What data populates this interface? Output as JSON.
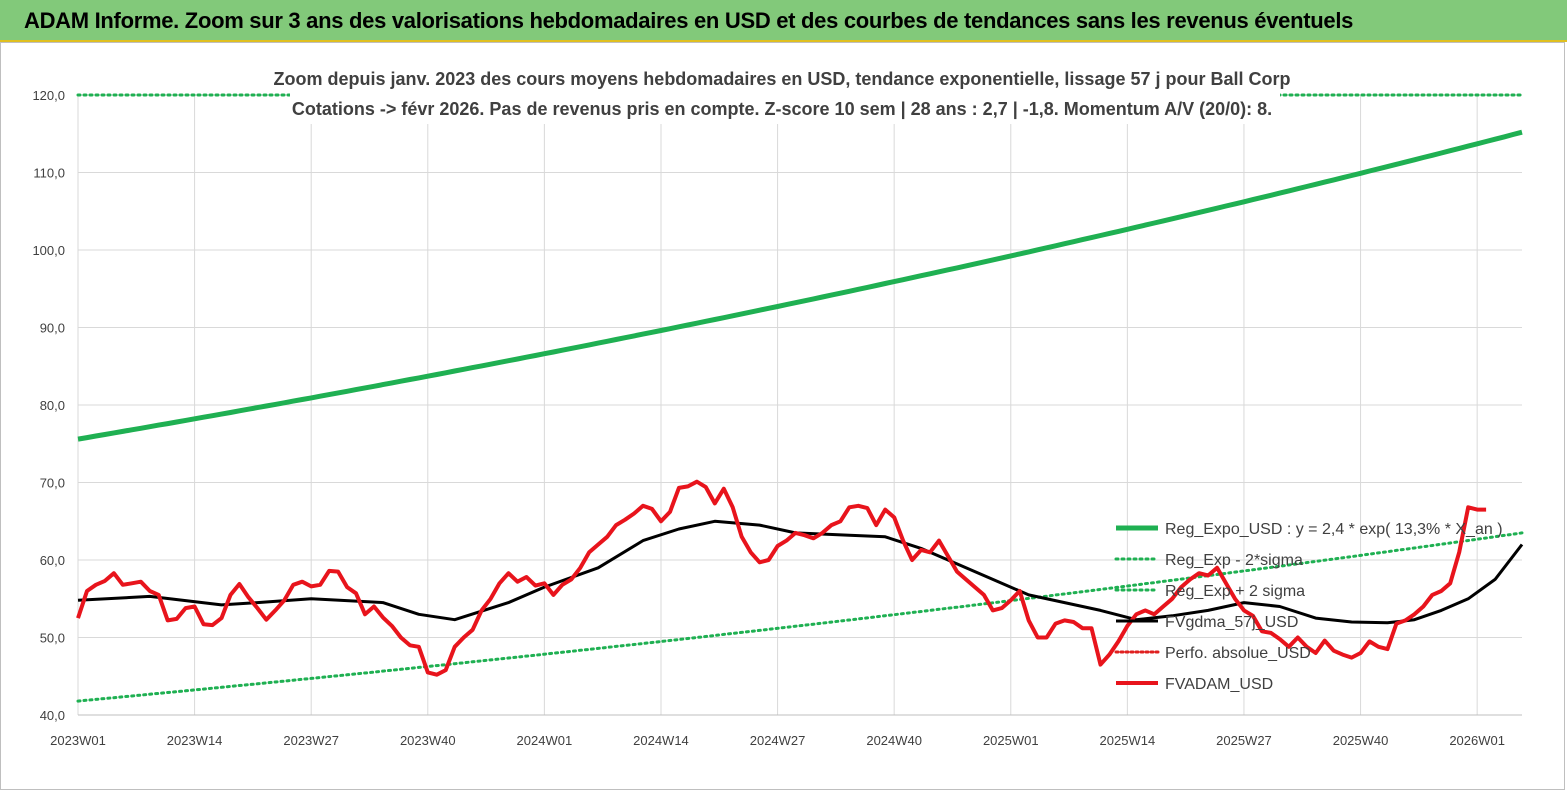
{
  "header": {
    "title": "ADAM Informe. Zoom sur 3 ans des valorisations hebdomadaires en USD et des courbes de tendances sans les revenus éventuels"
  },
  "chart_data": {
    "type": "line",
    "title_line1": "Zoom depuis janv. 2023 des cours moyens hebdomadaires en USD, tendance exponentielle, lissage 57 j pour Ball Corp",
    "title_line2": "Cotations -> févr 2026. Pas de revenus pris en compte. Z-score 10 sem  | 28 ans : 2,7 | -1,8. Momentum A/V (20/0): 8.",
    "ylim": [
      40,
      120
    ],
    "y_ticks": [
      "40,0",
      "50,0",
      "60,0",
      "70,0",
      "80,0",
      "90,0",
      "100,0",
      "110,0",
      "120,0"
    ],
    "x_count": 162,
    "x_ticks": [
      {
        "i": 0,
        "label": "2023W01"
      },
      {
        "i": 13,
        "label": "2023W14"
      },
      {
        "i": 26,
        "label": "2023W27"
      },
      {
        "i": 39,
        "label": "2023W40"
      },
      {
        "i": 52,
        "label": "2024W01"
      },
      {
        "i": 65,
        "label": "2024W14"
      },
      {
        "i": 78,
        "label": "2024W27"
      },
      {
        "i": 91,
        "label": "2024W40"
      },
      {
        "i": 104,
        "label": "2025W01"
      },
      {
        "i": 117,
        "label": "2025W14"
      },
      {
        "i": 130,
        "label": "2025W27"
      },
      {
        "i": 143,
        "label": "2025W40"
      },
      {
        "i": 156,
        "label": "2026W01"
      }
    ],
    "series": [
      {
        "name": "Reg_Expo_USD : y = 2,4 * exp( 13,3% *  X_an )",
        "color": "#1fb052",
        "style": "solid-thick",
        "start": 75.6,
        "end": 115.2
      },
      {
        "name": "Reg_Exp - 2*sigma",
        "color": "#1fb052",
        "style": "dotted",
        "start": 41.8,
        "end": 63.5
      },
      {
        "name": "Reg_Exp + 2 sigma",
        "color": "#1fb052",
        "style": "dotted",
        "start": 120.0,
        "end": 120.0
      },
      {
        "name": "FVgdma_57j_USD",
        "color": "#000000",
        "style": "solid",
        "points": [
          [
            0,
            54.8
          ],
          [
            8,
            55.3
          ],
          [
            16,
            54.2
          ],
          [
            20,
            54.5
          ],
          [
            26,
            55.0
          ],
          [
            34,
            54.5
          ],
          [
            38,
            53.0
          ],
          [
            42,
            52.3
          ],
          [
            48,
            54.5
          ],
          [
            52,
            56.5
          ],
          [
            58,
            59.0
          ],
          [
            63,
            62.5
          ],
          [
            67,
            64.0
          ],
          [
            71,
            65.0
          ],
          [
            76,
            64.5
          ],
          [
            80,
            63.5
          ],
          [
            86,
            63.2
          ],
          [
            90,
            63.0
          ],
          [
            94,
            61.5
          ],
          [
            98,
            59.5
          ],
          [
            102,
            57.5
          ],
          [
            106,
            55.5
          ],
          [
            110,
            54.5
          ],
          [
            114,
            53.5
          ],
          [
            118,
            52.3
          ],
          [
            122,
            52.8
          ],
          [
            126,
            53.5
          ],
          [
            130,
            54.5
          ],
          [
            134,
            54.0
          ],
          [
            138,
            52.5
          ],
          [
            142,
            52.0
          ],
          [
            146,
            51.9
          ],
          [
            149,
            52.3
          ],
          [
            152,
            53.5
          ],
          [
            155,
            55.0
          ],
          [
            158,
            57.5
          ],
          [
            161,
            62.0
          ]
        ]
      },
      {
        "name": "Perfo. absolue_USD",
        "color": "#e02020",
        "style": "dotted",
        "points": []
      },
      {
        "name": "FVADAM_USD",
        "color": "#e8141c",
        "style": "solid-thick",
        "points": [
          [
            0,
            52.5
          ],
          [
            1,
            56.0
          ],
          [
            2,
            56.8
          ],
          [
            3,
            57.3
          ],
          [
            4,
            58.3
          ],
          [
            5,
            56.8
          ],
          [
            6,
            57.0
          ],
          [
            7,
            57.2
          ],
          [
            8,
            56.0
          ],
          [
            9,
            55.5
          ],
          [
            10,
            52.2
          ],
          [
            11,
            52.4
          ],
          [
            12,
            53.8
          ],
          [
            13,
            54.0
          ],
          [
            14,
            51.7
          ],
          [
            15,
            51.6
          ],
          [
            16,
            52.5
          ],
          [
            17,
            55.5
          ],
          [
            18,
            56.9
          ],
          [
            19,
            55.2
          ],
          [
            20,
            53.8
          ],
          [
            21,
            52.3
          ],
          [
            22,
            53.5
          ],
          [
            23,
            54.8
          ],
          [
            24,
            56.8
          ],
          [
            25,
            57.2
          ],
          [
            26,
            56.6
          ],
          [
            27,
            56.8
          ],
          [
            28,
            58.6
          ],
          [
            29,
            58.5
          ],
          [
            30,
            56.5
          ],
          [
            31,
            55.7
          ],
          [
            32,
            53.0
          ],
          [
            33,
            54.0
          ],
          [
            34,
            52.6
          ],
          [
            35,
            51.5
          ],
          [
            36,
            50.0
          ],
          [
            37,
            49.0
          ],
          [
            38,
            48.8
          ],
          [
            39,
            45.5
          ],
          [
            40,
            45.2
          ],
          [
            41,
            45.8
          ],
          [
            42,
            48.8
          ],
          [
            43,
            50.0
          ],
          [
            44,
            51.0
          ],
          [
            45,
            53.5
          ],
          [
            46,
            55.0
          ],
          [
            47,
            57.0
          ],
          [
            48,
            58.3
          ],
          [
            49,
            57.2
          ],
          [
            50,
            57.8
          ],
          [
            51,
            56.7
          ],
          [
            52,
            57.0
          ],
          [
            53,
            55.5
          ],
          [
            54,
            56.8
          ],
          [
            55,
            57.5
          ],
          [
            56,
            59.0
          ],
          [
            57,
            61.0
          ],
          [
            58,
            62.0
          ],
          [
            59,
            63.0
          ],
          [
            60,
            64.5
          ],
          [
            61,
            65.2
          ],
          [
            62,
            66.0
          ],
          [
            63,
            67.0
          ],
          [
            64,
            66.6
          ],
          [
            65,
            65.0
          ],
          [
            66,
            66.2
          ],
          [
            67,
            69.3
          ],
          [
            68,
            69.5
          ],
          [
            69,
            70.1
          ],
          [
            70,
            69.4
          ],
          [
            71,
            67.3
          ],
          [
            72,
            69.2
          ],
          [
            73,
            66.8
          ],
          [
            74,
            63.0
          ],
          [
            75,
            61.0
          ],
          [
            76,
            59.7
          ],
          [
            77,
            60.0
          ],
          [
            78,
            61.8
          ],
          [
            79,
            62.5
          ],
          [
            80,
            63.5
          ],
          [
            81,
            63.2
          ],
          [
            82,
            62.8
          ],
          [
            83,
            63.5
          ],
          [
            84,
            64.5
          ],
          [
            85,
            65.0
          ],
          [
            86,
            66.8
          ],
          [
            87,
            67.0
          ],
          [
            88,
            66.7
          ],
          [
            89,
            64.5
          ],
          [
            90,
            66.5
          ],
          [
            91,
            65.5
          ],
          [
            92,
            62.5
          ],
          [
            93,
            60.0
          ],
          [
            94,
            61.3
          ],
          [
            95,
            61.0
          ],
          [
            96,
            62.5
          ],
          [
            97,
            60.5
          ],
          [
            98,
            58.5
          ],
          [
            99,
            57.5
          ],
          [
            100,
            56.5
          ],
          [
            101,
            55.5
          ],
          [
            102,
            53.5
          ],
          [
            103,
            53.8
          ],
          [
            104,
            54.8
          ],
          [
            105,
            56.0
          ],
          [
            106,
            52.2
          ],
          [
            107,
            50.0
          ],
          [
            108,
            50.0
          ],
          [
            109,
            51.8
          ],
          [
            110,
            52.2
          ],
          [
            111,
            52.0
          ],
          [
            112,
            51.2
          ],
          [
            113,
            51.2
          ],
          [
            114,
            46.5
          ],
          [
            115,
            47.8
          ],
          [
            116,
            49.5
          ],
          [
            117,
            51.5
          ],
          [
            118,
            53.0
          ],
          [
            119,
            53.5
          ],
          [
            120,
            53.0
          ],
          [
            121,
            54.0
          ],
          [
            122,
            55.0
          ],
          [
            123,
            56.5
          ],
          [
            124,
            57.5
          ],
          [
            125,
            58.3
          ],
          [
            126,
            58.0
          ],
          [
            127,
            59.0
          ],
          [
            128,
            57.0
          ],
          [
            129,
            55.0
          ],
          [
            130,
            53.5
          ],
          [
            131,
            52.8
          ],
          [
            132,
            50.8
          ],
          [
            133,
            50.6
          ],
          [
            134,
            49.8
          ],
          [
            135,
            48.8
          ],
          [
            136,
            50.0
          ],
          [
            137,
            48.8
          ],
          [
            138,
            48.0
          ],
          [
            139,
            49.6
          ],
          [
            140,
            48.3
          ],
          [
            141,
            47.8
          ],
          [
            142,
            47.4
          ],
          [
            143,
            48.0
          ],
          [
            144,
            49.5
          ],
          [
            145,
            48.8
          ],
          [
            146,
            48.5
          ],
          [
            147,
            51.8
          ],
          [
            148,
            52.2
          ],
          [
            149,
            53.0
          ],
          [
            150,
            54.0
          ],
          [
            151,
            55.5
          ],
          [
            152,
            56.0
          ],
          [
            153,
            57.0
          ],
          [
            154,
            61.0
          ],
          [
            155,
            66.8
          ],
          [
            156,
            66.5
          ],
          [
            157,
            66.5
          ]
        ]
      }
    ]
  }
}
